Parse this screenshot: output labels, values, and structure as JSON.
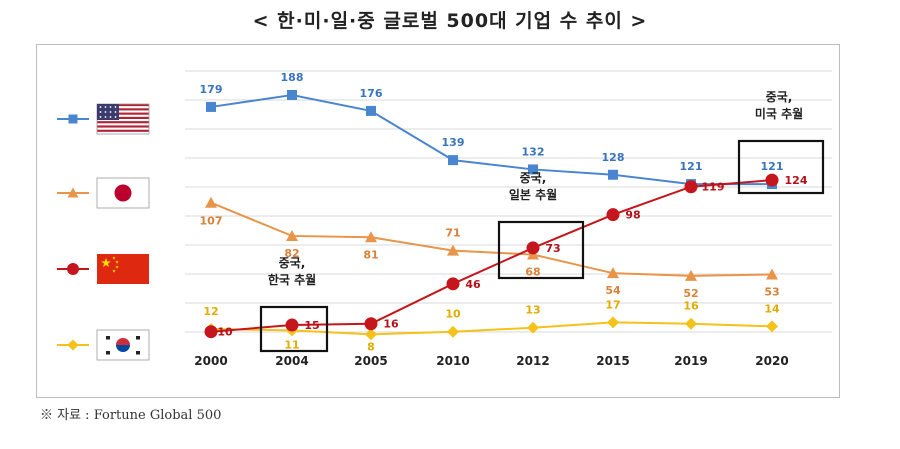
{
  "title": "< 한·미·일·중 글로벌 500대 기업 수 추이 >",
  "source": "※ 자료 : Fortune Global 500",
  "chart_data": {
    "type": "line",
    "categories": [
      "2000",
      "2004",
      "2005",
      "2010",
      "2012",
      "2015",
      "2019",
      "2020"
    ],
    "ylim": [
      0,
      200
    ],
    "grid": true,
    "legend": "left",
    "series": [
      {
        "key": "us",
        "icon": "us-flag-icon",
        "color": "#4a86d0",
        "marker": "square",
        "values": [
          179,
          188,
          176,
          139,
          132,
          128,
          121,
          121
        ]
      },
      {
        "key": "jp",
        "icon": "japan-flag-icon",
        "color": "#e8954a",
        "marker": "triangle",
        "values": [
          107,
          82,
          81,
          71,
          68,
          54,
          52,
          53
        ]
      },
      {
        "key": "cn",
        "icon": "china-flag-icon",
        "color": "#c4161c",
        "marker": "circle",
        "values": [
          10,
          15,
          16,
          46,
          73,
          98,
          119,
          124
        ]
      },
      {
        "key": "kr",
        "icon": "korea-flag-icon",
        "color": "#f5c21a",
        "marker": "diamond",
        "values": [
          12,
          11,
          8,
          10,
          13,
          17,
          16,
          14
        ]
      }
    ],
    "annotations": [
      {
        "lines": [
          "중국,",
          "한국 추월"
        ],
        "at": "2004"
      },
      {
        "lines": [
          "중국,",
          "일본 추월"
        ],
        "at": "2012"
      },
      {
        "lines": [
          "중국,",
          "미국 추월"
        ],
        "at": "2020"
      }
    ]
  }
}
